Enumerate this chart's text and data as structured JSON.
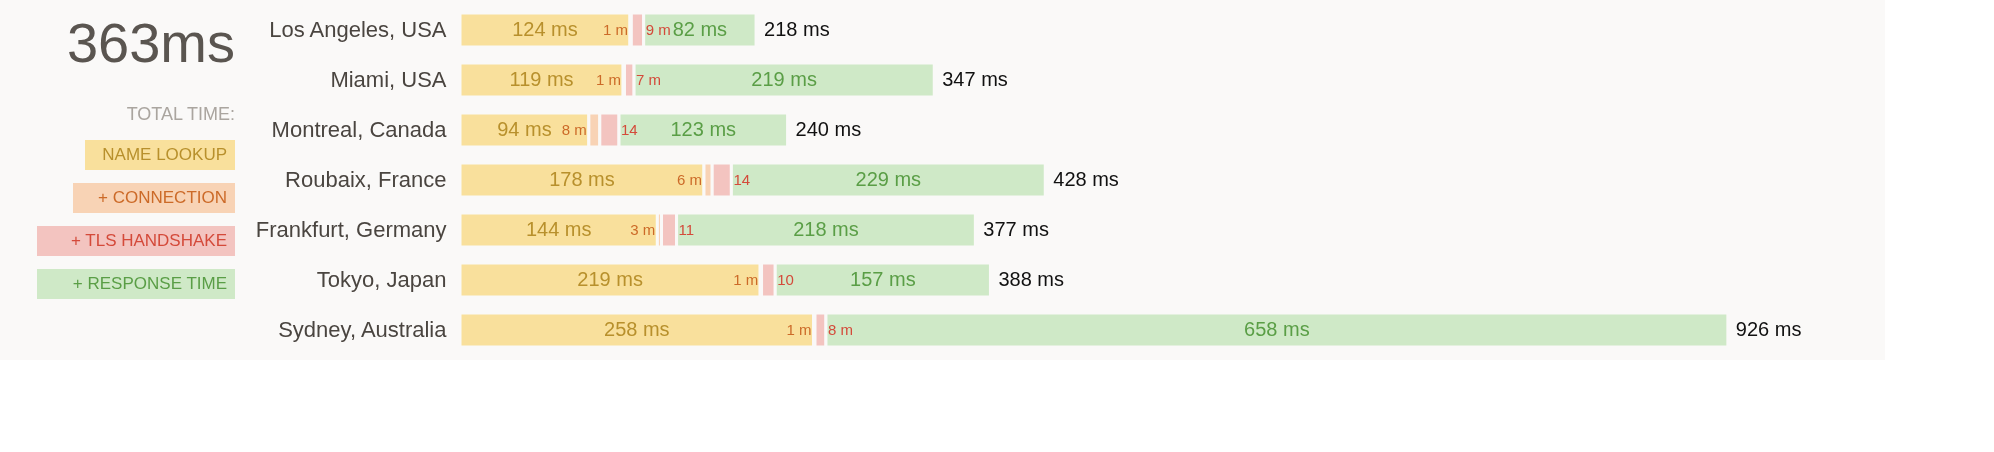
{
  "chart_data": {
    "type": "bar",
    "stacked": true,
    "orientation": "horizontal",
    "title": "363ms",
    "legend_title": "TOTAL TIME:",
    "legend": "left",
    "categories": [
      "Los Angeles, USA",
      "Miami, USA",
      "Montreal, Canada",
      "Roubaix, France",
      "Frankfurt, Germany",
      "Tokyo, Japan",
      "Sydney, Australia"
    ],
    "series": [
      {
        "name": "NAME LOOKUP",
        "color": "#f9e09c",
        "values": [
          124,
          119,
          94,
          178,
          144,
          219,
          258
        ],
        "value_labels": [
          "124 ms",
          "119 ms",
          "94 ms",
          "178 ms",
          "144 ms",
          "219 ms",
          "258 ms"
        ]
      },
      {
        "name": "+ CONNECTION",
        "color": "#f8d3b5",
        "values": [
          1,
          1,
          8,
          6,
          3,
          1,
          1
        ],
        "value_labels": [
          "1 m",
          "1 m",
          "8 m",
          "6 m",
          "3 m",
          "1 m",
          "1 m"
        ]
      },
      {
        "name": "+ TLS HANDSHAKE",
        "color": "#f3c4c0",
        "values": [
          9,
          7,
          14,
          14,
          11,
          10,
          8
        ],
        "value_labels": [
          "9 m",
          "7 m",
          "14",
          "14",
          "11",
          "10",
          "8 m"
        ]
      },
      {
        "name": "+ RESPONSE TIME",
        "color": "#cfe9c7",
        "values": [
          82,
          219,
          123,
          229,
          218,
          157,
          658
        ],
        "value_labels": [
          "82 ms",
          "219 ms",
          "123 ms",
          "229 ms",
          "218 ms",
          "157 ms",
          "658 ms"
        ]
      }
    ],
    "totals": [
      "218 ms",
      "347 ms",
      "240 ms",
      "428 ms",
      "377 ms",
      "388 ms",
      "926 ms"
    ]
  }
}
